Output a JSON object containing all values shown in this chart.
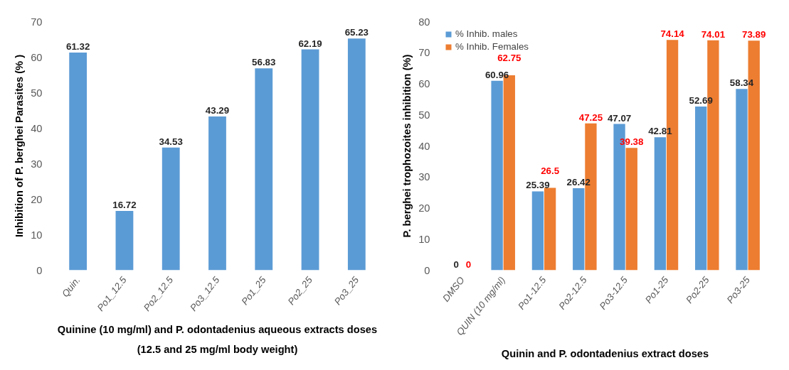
{
  "chart_data": [
    {
      "type": "bar",
      "xlabel": "Quinine (10 mg/ml) and P. odontadenius aqueous extracts doses\n(12.5 and 25 mg/ml body weight)",
      "ylabel": "Inhibition of P. berghei Parasites (% )",
      "categories": [
        "Quin.",
        "Po1_12.5",
        "Po2_12.5",
        "Po3_12.5",
        "Po1_25",
        "Po2_25",
        "Po3_25"
      ],
      "series": [
        {
          "color": "#5b9bd5",
          "values": [
            61.32,
            16.72,
            34.53,
            43.29,
            56.83,
            62.19,
            65.23
          ]
        }
      ],
      "ylim": [
        0,
        70
      ],
      "yticks": [
        0,
        10,
        20,
        30,
        40,
        50,
        60,
        70
      ],
      "grid": false,
      "data_labels": true
    },
    {
      "type": "bar",
      "xlabel": "Quinin and P. odontadenius extract doses",
      "ylabel": "P. berghei trophozoites inhibition (%)",
      "categories": [
        "DMSO",
        "QUIN (10 mg/ml)",
        "Po1-12.5",
        "Po2-12.5",
        "Po3-12.5",
        "Po1-25",
        "Po2-25",
        "Po3-25"
      ],
      "series": [
        {
          "name": "% Inhib. males",
          "color": "#5b9bd5",
          "values": [
            0,
            60.96,
            25.39,
            26.42,
            47.07,
            42.81,
            52.69,
            58.34
          ]
        },
        {
          "name": "% Inhib. Females",
          "color": "#ed7d31",
          "values": [
            0,
            62.75,
            26.5,
            47.25,
            39.38,
            74.14,
            74.01,
            73.89
          ]
        }
      ],
      "ylim": [
        0,
        80
      ],
      "yticks": [
        0,
        10,
        20,
        30,
        40,
        50,
        60,
        70,
        80
      ],
      "grid": false,
      "legend": "top left",
      "data_labels": true
    }
  ]
}
